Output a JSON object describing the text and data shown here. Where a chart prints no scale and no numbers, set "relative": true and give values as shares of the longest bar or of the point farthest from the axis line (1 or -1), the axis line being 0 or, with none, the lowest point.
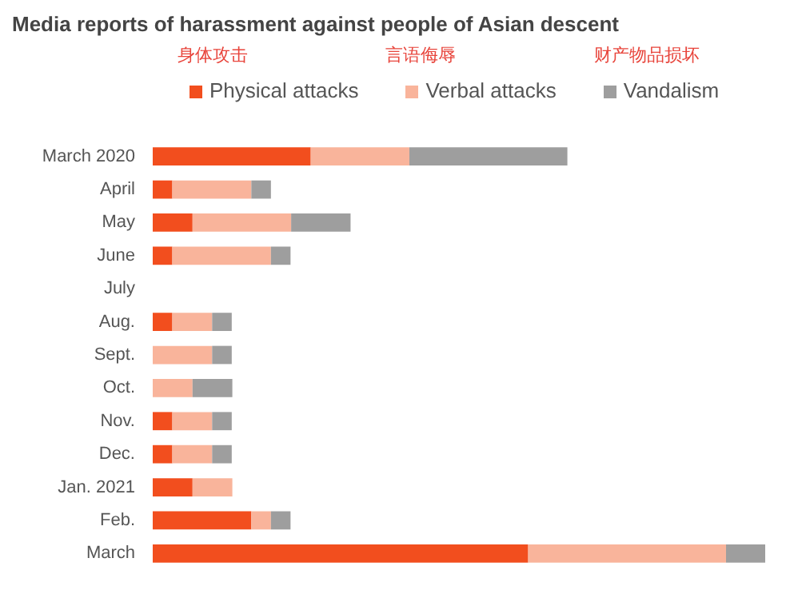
{
  "chart_data": {
    "type": "bar",
    "orientation": "horizontal",
    "stacked": true,
    "relative": true,
    "title": "Media reports of harassment against people of Asian descent",
    "annotations": [
      "身体攻击",
      "言语侮辱",
      "财产物品损坏"
    ],
    "categories": [
      "March 2020",
      "April",
      "May",
      "June",
      "July",
      "Aug.",
      "Sept.",
      "Oct.",
      "Nov.",
      "Dec.",
      "Jan. 2021",
      "Feb.",
      "March"
    ],
    "series": [
      {
        "name": "Physical attacks",
        "color": "#f24e1e",
        "values": [
          0.258,
          0.032,
          0.065,
          0.032,
          null,
          0.032,
          0,
          0,
          0.032,
          0.032,
          0.065,
          0.161,
          0.613
        ]
      },
      {
        "name": "Verbal attacks",
        "color": "#f9b49b",
        "values": [
          0.161,
          0.129,
          0.161,
          0.161,
          null,
          0.065,
          0.097,
          0.065,
          0.065,
          0.065,
          0.065,
          0.032,
          0.323
        ]
      },
      {
        "name": "Vandalism",
        "color": "#9e9e9e",
        "values": [
          0.258,
          0.032,
          0.097,
          0.032,
          null,
          0.032,
          0.032,
          0.065,
          0.032,
          0.032,
          0,
          0.032,
          0.064
        ]
      }
    ],
    "tick_labels": "y",
    "grid": false,
    "legend": "top left"
  }
}
